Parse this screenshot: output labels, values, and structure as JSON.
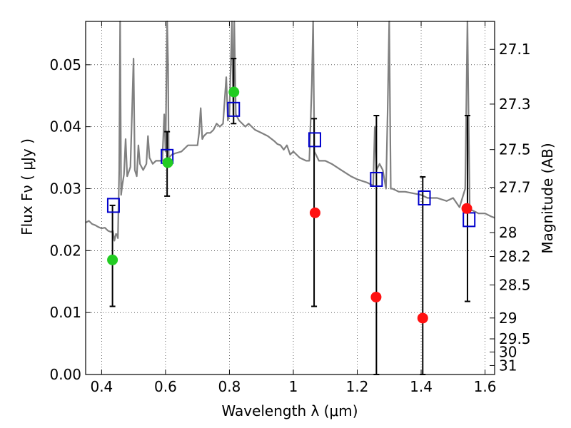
{
  "chart_data": {
    "type": "scatter",
    "xlabel": "Wavelength  λ (μm)",
    "ylabel": "Flux  Fν  ( μJy )",
    "y2label": "Magnitude (AB)",
    "xlim": [
      0.35,
      1.63
    ],
    "ylim": [
      0.0,
      0.057
    ],
    "grid": true,
    "x_ticks": [
      0.4,
      0.6,
      0.8,
      1.0,
      1.2,
      1.4,
      1.6
    ],
    "x_tick_labels": [
      "0.4",
      "0.6",
      "0.8",
      "1",
      "1.2",
      "1.4",
      "1.6"
    ],
    "y_ticks": [
      0.0,
      0.01,
      0.02,
      0.03,
      0.04,
      0.05
    ],
    "y_tick_labels": [
      "0.00",
      "0.01",
      "0.02",
      "0.03",
      "0.04",
      "0.05"
    ],
    "mag_ticks": [
      "27.1",
      "27.3",
      "27.5",
      "27.7",
      "28",
      "28.2",
      "28.5",
      "29",
      "29.5",
      "30",
      "31"
    ],
    "series": [
      {
        "role": "model-spectrum",
        "color": "#808080",
        "points": [
          [
            0.35,
            0.0245
          ],
          [
            0.36,
            0.0248
          ],
          [
            0.37,
            0.0243
          ],
          [
            0.38,
            0.0241
          ],
          [
            0.39,
            0.0238
          ],
          [
            0.4,
            0.0236
          ],
          [
            0.41,
            0.0237
          ],
          [
            0.42,
            0.0232
          ],
          [
            0.43,
            0.023
          ],
          [
            0.435,
            0.0232
          ],
          [
            0.44,
            0.0216
          ],
          [
            0.445,
            0.0227
          ],
          [
            0.448,
            0.0226
          ],
          [
            0.451,
            0.022
          ],
          [
            0.455,
            0.033
          ],
          [
            0.458,
            0.057
          ],
          [
            0.461,
            0.029
          ],
          [
            0.464,
            0.0303
          ],
          [
            0.47,
            0.0323
          ],
          [
            0.475,
            0.038
          ],
          [
            0.48,
            0.032
          ],
          [
            0.49,
            0.0335
          ],
          [
            0.496,
            0.044
          ],
          [
            0.5,
            0.051
          ],
          [
            0.504,
            0.033
          ],
          [
            0.51,
            0.032
          ],
          [
            0.515,
            0.037
          ],
          [
            0.52,
            0.034
          ],
          [
            0.53,
            0.033
          ],
          [
            0.54,
            0.034
          ],
          [
            0.545,
            0.0385
          ],
          [
            0.55,
            0.035
          ],
          [
            0.56,
            0.034
          ],
          [
            0.57,
            0.0345
          ],
          [
            0.58,
            0.0345
          ],
          [
            0.59,
            0.0345
          ],
          [
            0.596,
            0.042
          ],
          [
            0.6,
            0.036
          ],
          [
            0.605,
            0.057
          ],
          [
            0.608,
            0.05
          ],
          [
            0.61,
            0.035
          ],
          [
            0.62,
            0.0355
          ],
          [
            0.63,
            0.0357
          ],
          [
            0.65,
            0.036
          ],
          [
            0.66,
            0.0365
          ],
          [
            0.67,
            0.037
          ],
          [
            0.68,
            0.037
          ],
          [
            0.7,
            0.037
          ],
          [
            0.705,
            0.039
          ],
          [
            0.71,
            0.043
          ],
          [
            0.715,
            0.038
          ],
          [
            0.72,
            0.0385
          ],
          [
            0.73,
            0.039
          ],
          [
            0.74,
            0.039
          ],
          [
            0.75,
            0.0395
          ],
          [
            0.76,
            0.0405
          ],
          [
            0.77,
            0.04
          ],
          [
            0.78,
            0.0405
          ],
          [
            0.79,
            0.048
          ],
          [
            0.795,
            0.041
          ],
          [
            0.8,
            0.042
          ],
          [
            0.808,
            0.057
          ],
          [
            0.812,
            0.042
          ],
          [
            0.815,
            0.057
          ],
          [
            0.82,
            0.042
          ],
          [
            0.83,
            0.041
          ],
          [
            0.85,
            0.04
          ],
          [
            0.86,
            0.0405
          ],
          [
            0.88,
            0.0395
          ],
          [
            0.9,
            0.039
          ],
          [
            0.92,
            0.0385
          ],
          [
            0.94,
            0.0377
          ],
          [
            0.95,
            0.0372
          ],
          [
            0.96,
            0.037
          ],
          [
            0.97,
            0.0363
          ],
          [
            0.98,
            0.037
          ],
          [
            0.99,
            0.0355
          ],
          [
            1.0,
            0.036
          ],
          [
            1.02,
            0.035
          ],
          [
            1.04,
            0.0345
          ],
          [
            1.05,
            0.0345
          ],
          [
            1.058,
            0.047
          ],
          [
            1.062,
            0.057
          ],
          [
            1.066,
            0.036
          ],
          [
            1.08,
            0.0345
          ],
          [
            1.1,
            0.0345
          ],
          [
            1.12,
            0.034
          ],
          [
            1.15,
            0.033
          ],
          [
            1.18,
            0.032
          ],
          [
            1.2,
            0.0315
          ],
          [
            1.23,
            0.031
          ],
          [
            1.25,
            0.0305
          ],
          [
            1.255,
            0.04
          ],
          [
            1.26,
            0.033
          ],
          [
            1.27,
            0.034
          ],
          [
            1.28,
            0.033
          ],
          [
            1.29,
            0.03
          ],
          [
            1.295,
            0.042
          ],
          [
            1.3,
            0.057
          ],
          [
            1.305,
            0.03
          ],
          [
            1.31,
            0.03
          ],
          [
            1.33,
            0.0295
          ],
          [
            1.35,
            0.0295
          ],
          [
            1.4,
            0.029
          ],
          [
            1.42,
            0.0285
          ],
          [
            1.45,
            0.0285
          ],
          [
            1.48,
            0.028
          ],
          [
            1.5,
            0.0285
          ],
          [
            1.52,
            0.027
          ],
          [
            1.538,
            0.03
          ],
          [
            1.545,
            0.057
          ],
          [
            1.552,
            0.0265
          ],
          [
            1.56,
            0.0265
          ],
          [
            1.58,
            0.026
          ],
          [
            1.6,
            0.026
          ],
          [
            1.62,
            0.0255
          ],
          [
            1.63,
            0.0253
          ]
        ]
      },
      {
        "role": "model-photometry",
        "marker": "open-square",
        "color": "#0000cc",
        "points": [
          [
            0.437,
            0.0273
          ],
          [
            0.605,
            0.0352
          ],
          [
            0.813,
            0.0428
          ],
          [
            1.067,
            0.0379
          ],
          [
            1.26,
            0.0315
          ],
          [
            1.41,
            0.0285
          ],
          [
            1.55,
            0.025
          ]
        ]
      },
      {
        "role": "detections",
        "marker": "filled-circle",
        "color": "#22cc22",
        "points": [
          [
            0.434,
            0.0185
          ],
          [
            0.607,
            0.0342
          ],
          [
            0.814,
            0.0456
          ]
        ]
      },
      {
        "role": "upper-limits",
        "marker": "filled-circle",
        "color": "#ff1111",
        "points": [
          [
            1.068,
            0.0261
          ],
          [
            1.259,
            0.0125
          ],
          [
            1.405,
            0.0091
          ],
          [
            1.543,
            0.0268
          ]
        ]
      }
    ],
    "error_bars": [
      {
        "x": 0.434,
        "low": 0.011,
        "high": 0.0273
      },
      {
        "x": 0.605,
        "low": 0.0288,
        "high": 0.0392
      },
      {
        "x": 0.813,
        "low": 0.0405,
        "high": 0.051
      },
      {
        "x": 1.065,
        "low": 0.011,
        "high": 0.0413
      },
      {
        "x": 1.26,
        "low": 0.0,
        "high": 0.0418
      },
      {
        "x": 1.405,
        "low": 0.0,
        "high": 0.0319
      },
      {
        "x": 1.545,
        "low": 0.0118,
        "high": 0.0418
      }
    ]
  }
}
